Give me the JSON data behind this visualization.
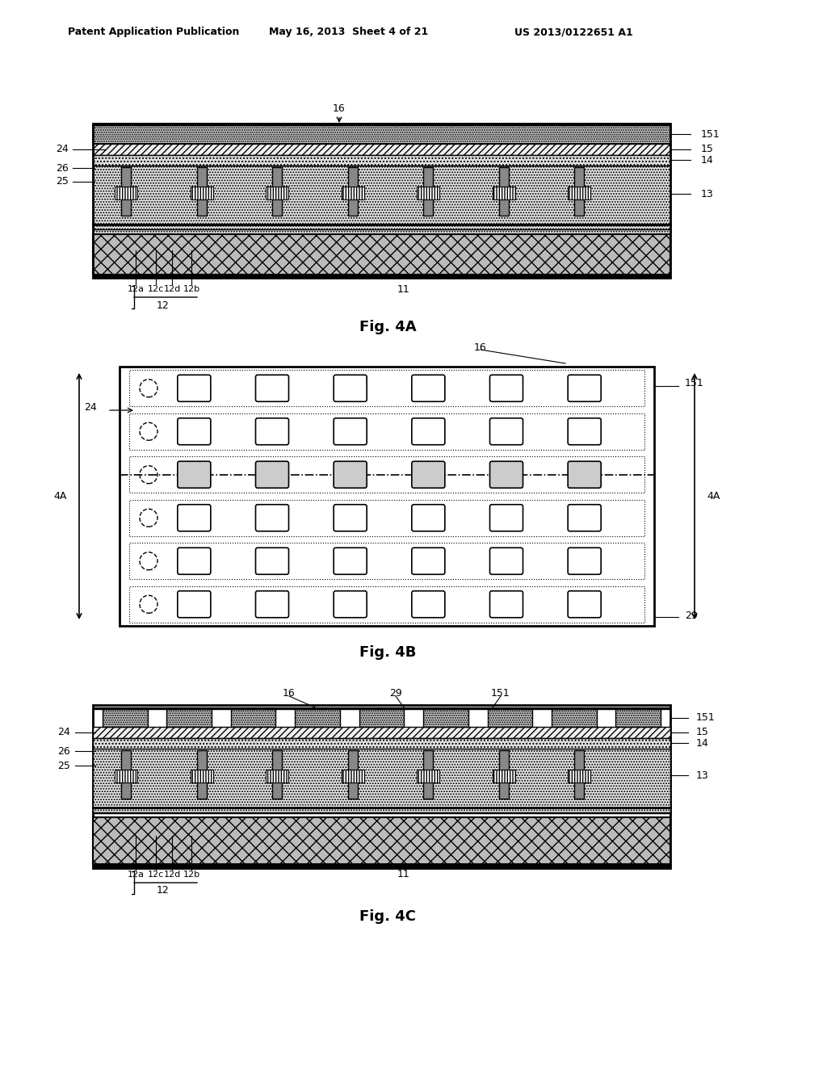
{
  "header_left": "Patent Application Publication",
  "header_mid": "May 16, 2013  Sheet 4 of 21",
  "header_right": "US 2013/0122651 A1",
  "fig4a_label": "Fig. 4A",
  "fig4b_label": "Fig. 4B",
  "fig4c_label": "Fig. 4C",
  "bg_color": "#ffffff"
}
